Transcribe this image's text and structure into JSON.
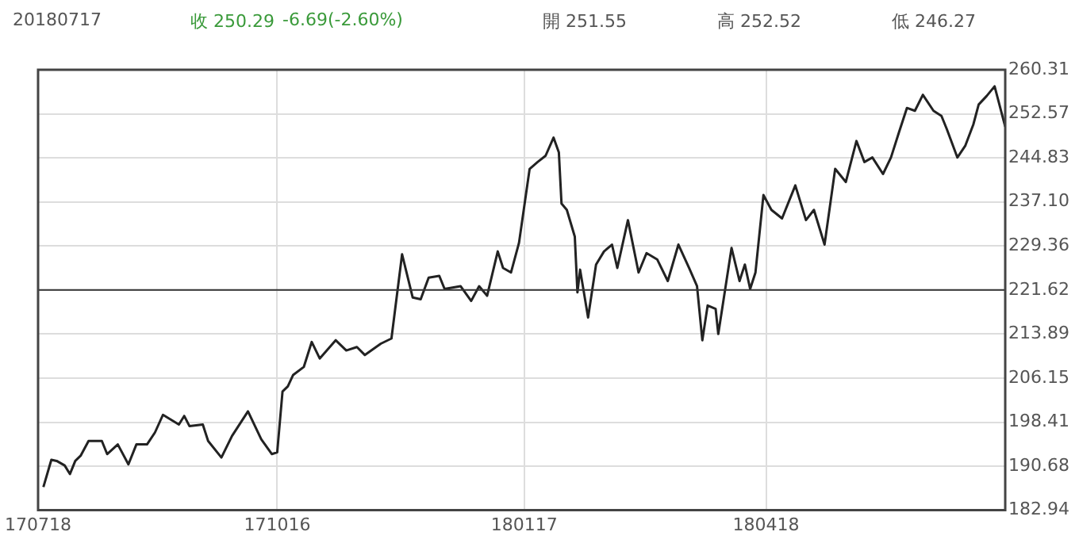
{
  "chart_data": {
    "type": "line",
    "title": "20180717",
    "annotations": [
      "收 250.29",
      "-6.69(-2.60%)",
      "開 251.55",
      "高 252.52",
      "低 246.27"
    ],
    "x": [
      "2017-07-20",
      "2017-07-23",
      "2017-07-25",
      "2017-07-28",
      "2017-07-30",
      "2017-08-01",
      "2017-08-03",
      "2017-08-06",
      "2017-08-11",
      "2017-08-13",
      "2017-08-17",
      "2017-08-21",
      "2017-08-24",
      "2017-08-28",
      "2017-08-31",
      "2017-09-03",
      "2017-09-09",
      "2017-09-11",
      "2017-09-13",
      "2017-09-18",
      "2017-09-20",
      "2017-09-25",
      "2017-09-29",
      "2017-10-05",
      "2017-10-10",
      "2017-10-14",
      "2017-10-16",
      "2017-10-18",
      "2017-10-20",
      "2017-10-22",
      "2017-10-26",
      "2017-10-29",
      "2017-11-01",
      "2017-11-07",
      "2017-11-11",
      "2017-11-15",
      "2017-11-18",
      "2017-11-24",
      "2017-11-28",
      "2017-12-02",
      "2017-12-06",
      "2017-12-09",
      "2017-12-12",
      "2017-12-16",
      "2017-12-18",
      "2017-12-24",
      "2017-12-28",
      "2017-12-31",
      "2018-01-03",
      "2018-01-07",
      "2018-01-09",
      "2018-01-12",
      "2018-01-15",
      "2018-01-19",
      "2018-01-22",
      "2018-01-25",
      "2018-01-28",
      "2018-01-30",
      "2018-01-31",
      "2018-02-02",
      "2018-02-05",
      "2018-02-06",
      "2018-02-07",
      "2018-02-10",
      "2018-02-13",
      "2018-02-16",
      "2018-02-19",
      "2018-02-21",
      "2018-02-25",
      "2018-03-01",
      "2018-03-04",
      "2018-03-08",
      "2018-03-12",
      "2018-03-16",
      "2018-03-20",
      "2018-03-23",
      "2018-03-25",
      "2018-03-27",
      "2018-03-30",
      "2018-03-31",
      "2018-04-05",
      "2018-04-08",
      "2018-04-10",
      "2018-04-12",
      "2018-04-14",
      "2018-04-17",
      "2018-04-20",
      "2018-04-24",
      "2018-04-29",
      "2018-05-03",
      "2018-05-06",
      "2018-05-10",
      "2018-05-14",
      "2018-05-18",
      "2018-05-22",
      "2018-05-25",
      "2018-05-28",
      "2018-06-01",
      "2018-06-04",
      "2018-06-07",
      "2018-06-10",
      "2018-06-13",
      "2018-06-16",
      "2018-06-20",
      "2018-06-23",
      "2018-06-25",
      "2018-06-29",
      "2018-07-02",
      "2018-07-05",
      "2018-07-07",
      "2018-07-10",
      "2018-07-13",
      "2018-07-17"
    ],
    "series": [
      {
        "color": "#222222",
        "values": [
          187.0,
          191.8,
          191.6,
          190.8,
          189.3,
          191.6,
          192.5,
          195.1,
          195.1,
          192.8,
          194.5,
          191.0,
          194.5,
          194.5,
          196.6,
          199.7,
          198.0,
          199.5,
          197.7,
          198.0,
          195.1,
          192.2,
          196.0,
          200.3,
          195.4,
          192.8,
          193.1,
          203.8,
          204.7,
          206.7,
          208.1,
          212.5,
          209.6,
          212.8,
          211.0,
          211.6,
          210.2,
          212.2,
          213.1,
          227.9,
          220.3,
          220.0,
          223.8,
          224.1,
          221.8,
          222.3,
          219.7,
          222.3,
          220.6,
          228.4,
          225.5,
          224.7,
          229.9,
          242.9,
          244.1,
          245.2,
          248.4,
          245.8,
          236.8,
          235.7,
          231.0,
          221.2,
          225.2,
          216.8,
          226.1,
          228.4,
          229.6,
          225.5,
          233.9,
          224.7,
          228.1,
          227.0,
          223.2,
          229.6,
          225.5,
          222.3,
          212.8,
          218.9,
          218.3,
          213.9,
          229.0,
          223.2,
          226.1,
          221.8,
          224.7,
          238.3,
          235.7,
          234.2,
          240.0,
          233.9,
          235.7,
          229.6,
          242.9,
          240.6,
          247.8,
          244.1,
          244.9,
          242.0,
          244.9,
          249.3,
          253.6,
          253.1,
          255.9,
          253.1,
          252.2,
          249.9,
          244.9,
          247.0,
          250.7,
          254.2,
          255.7,
          257.4,
          250.3
        ]
      }
    ],
    "xlim": [
      "2017-07-18",
      "2018-07-17"
    ],
    "xticks": [
      {
        "value": "2017-07-18",
        "label": "170718"
      },
      {
        "value": "2017-10-16",
        "label": "171016"
      },
      {
        "value": "2018-01-17",
        "label": "180117"
      },
      {
        "value": "2018-04-18",
        "label": "180418"
      }
    ],
    "ylim": [
      182.94,
      260.31
    ],
    "yticks": [
      182.94,
      190.68,
      198.41,
      206.15,
      213.89,
      221.62,
      229.36,
      {
        "value": 237.1,
        "label": "237.10"
      },
      244.83,
      252.57,
      260.31
    ],
    "ref_lines": [
      {
        "axis": "y",
        "value": 221.62,
        "color": "#333333"
      }
    ],
    "grid": true,
    "legend": false,
    "marker": "none",
    "line_style": "solid"
  }
}
